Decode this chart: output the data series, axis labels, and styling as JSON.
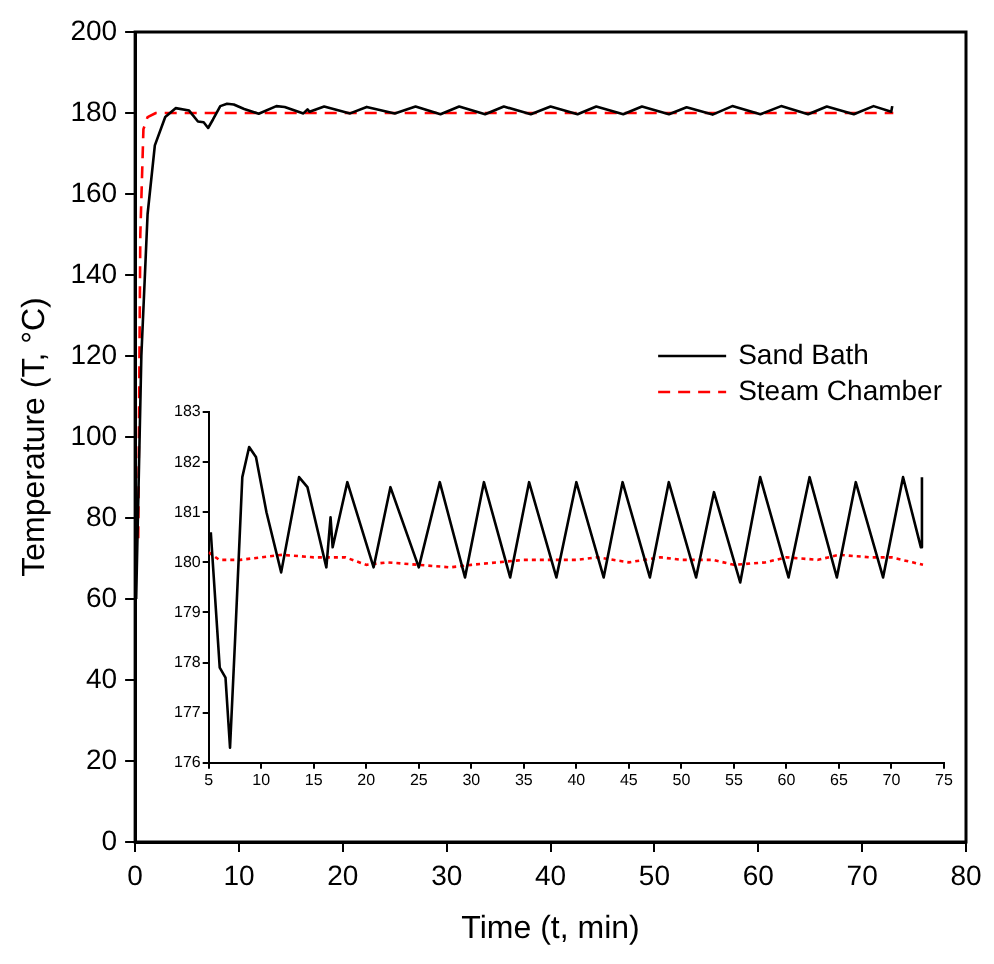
{
  "chart_data": [
    {
      "type": "line",
      "xlabel": "Time (t, min)",
      "ylabel": "Temperature (T, °C)",
      "xlim": [
        0,
        80
      ],
      "xticks": [
        0,
        10,
        20,
        30,
        40,
        50,
        60,
        70,
        80
      ],
      "ylim": [
        0,
        200
      ],
      "yticks": [
        0,
        20,
        40,
        60,
        80,
        100,
        120,
        140,
        160,
        180,
        200
      ],
      "grid": false,
      "legend": "right",
      "marker": "none",
      "series": [
        {
          "name": "Sand Bath",
          "color": "#000000",
          "line_style": "solid",
          "x": [
            0.1,
            0.6,
            1.2,
            1.9,
            2.9,
            3.9,
            5.2,
            6.05,
            6.6,
            7.03,
            7.5,
            8.2,
            8.85,
            9.5,
            10.5,
            11.9,
            13.6,
            14.4,
            16.2,
            16.6,
            16.8,
            18.2,
            20.7,
            22.3,
            25.0,
            27.0,
            29.4,
            31.2,
            33.7,
            35.5,
            38.1,
            40.0,
            42.6,
            44.4,
            47.0,
            48.8,
            51.4,
            53.1,
            55.6,
            57.5,
            60.2,
            62.2,
            64.8,
            66.6,
            69.2,
            71.1,
            72.8,
            72.9
          ],
          "values": [
            60,
            120,
            155,
            172,
            179,
            181.2,
            180.6,
            177.9,
            177.7,
            176.3,
            178.4,
            181.7,
            182.3,
            182.1,
            181.0,
            179.8,
            181.7,
            181.5,
            179.9,
            180.9,
            180.3,
            181.6,
            179.9,
            181.5,
            179.9,
            181.6,
            179.7,
            181.6,
            179.7,
            181.6,
            179.7,
            181.6,
            179.7,
            181.6,
            179.7,
            181.6,
            179.7,
            181.4,
            179.6,
            181.7,
            179.7,
            181.7,
            179.7,
            181.6,
            179.7,
            181.7,
            180.3,
            181.7
          ]
        },
        {
          "name": "Steam Chamber",
          "color": "#ff0000",
          "line_style": "dashed",
          "x": [
            0.3,
            0.5,
            0.8,
            1.2,
            2,
            73
          ],
          "values": [
            75,
            150,
            176,
            179,
            180,
            180
          ]
        }
      ]
    },
    {
      "type": "line",
      "xlim": [
        5,
        75
      ],
      "xticks": [
        5,
        10,
        15,
        20,
        25,
        30,
        35,
        40,
        45,
        50,
        55,
        60,
        65,
        70,
        75
      ],
      "ylim": [
        176,
        183
      ],
      "yticks": [
        176,
        177,
        178,
        179,
        180,
        181,
        182,
        183
      ],
      "grid": false,
      "marker": "none",
      "series": [
        {
          "color": "#000000",
          "line_style": "solid",
          "x": [
            5.2,
            6.05,
            6.6,
            7.03,
            7.5,
            8.2,
            8.85,
            9.5,
            10.5,
            11.9,
            13.6,
            14.4,
            16.2,
            16.6,
            16.8,
            18.2,
            20.7,
            22.3,
            25.0,
            27.0,
            29.4,
            31.2,
            33.7,
            35.5,
            38.1,
            40.0,
            42.6,
            44.4,
            47.0,
            48.8,
            51.4,
            53.1,
            55.6,
            57.5,
            60.2,
            62.2,
            64.8,
            66.6,
            69.2,
            71.1,
            72.8,
            72.9
          ],
          "values": [
            180.6,
            177.9,
            177.7,
            176.3,
            178.4,
            181.7,
            182.3,
            182.1,
            181.0,
            179.8,
            181.7,
            181.5,
            179.9,
            180.9,
            180.3,
            181.6,
            179.9,
            181.5,
            179.9,
            181.6,
            179.7,
            181.6,
            179.7,
            181.6,
            179.7,
            181.6,
            179.7,
            181.6,
            179.7,
            181.6,
            179.7,
            181.4,
            179.6,
            181.7,
            179.7,
            181.7,
            179.7,
            181.6,
            179.7,
            181.7,
            180.3,
            181.7
          ]
        },
        {
          "color": "#ff0000",
          "line_style": "dotted",
          "x": [
            5,
            6,
            8,
            12,
            15,
            18,
            20,
            22,
            25,
            28,
            30,
            35,
            40,
            42,
            45,
            48,
            50,
            53,
            55,
            58,
            60,
            63,
            65,
            68,
            70,
            72,
            73
          ],
          "values": [
            180.2,
            180.05,
            180.05,
            180.15,
            180.1,
            180.1,
            179.95,
            180.0,
            179.95,
            179.9,
            179.95,
            180.05,
            180.05,
            180.1,
            180.0,
            180.1,
            180.05,
            180.05,
            179.95,
            180.0,
            180.1,
            180.05,
            180.15,
            180.1,
            180.1,
            180.0,
            179.95
          ]
        }
      ]
    }
  ]
}
